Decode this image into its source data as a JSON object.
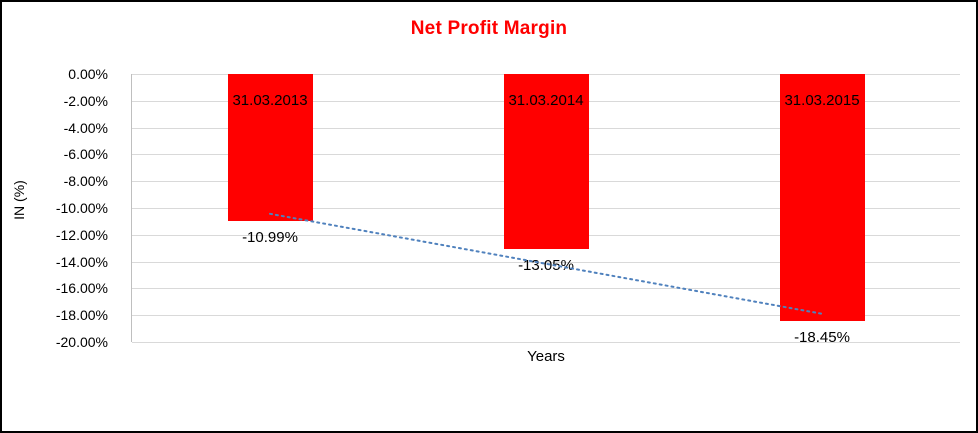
{
  "chart_data": {
    "type": "bar",
    "title": "Net Profit Margin",
    "xlabel": "Years",
    "ylabel": "IN (%)",
    "categories": [
      "31.03.2013",
      "31.03.2014",
      "31.03.2015"
    ],
    "values": [
      -10.99,
      -13.05,
      -18.45
    ],
    "data_labels": [
      "-10.99%",
      "-13.05%",
      "-18.45%"
    ],
    "ylim": [
      -20,
      0
    ],
    "ytick_step": 2,
    "ytick_labels": [
      "0.00%",
      "-2.00%",
      "-4.00%",
      "-6.00%",
      "-8.00%",
      "-10.00%",
      "-12.00%",
      "-14.00%",
      "-16.00%",
      "-18.00%",
      "-20.00%"
    ],
    "grid": true,
    "legend": "none",
    "bar_color": "#ff0000",
    "title_color": "#ff0000",
    "gridline_color": "#d9d9d9",
    "trendline": {
      "type": "linear",
      "style": "dotted",
      "color": "#4f81bd"
    }
  }
}
